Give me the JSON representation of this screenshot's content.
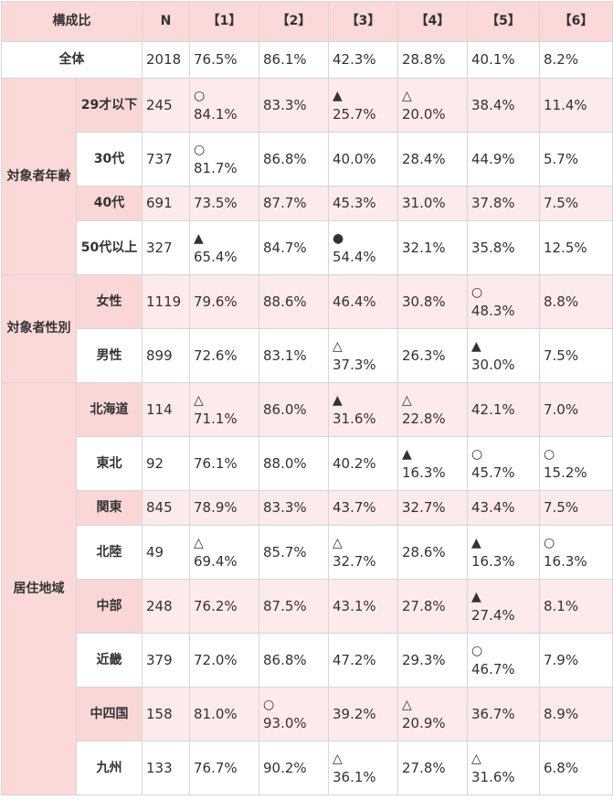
{
  "header": {
    "label": "構成比",
    "n": "N",
    "cols": [
      "【1】",
      "【2】",
      "【3】",
      "【4】",
      "【5】",
      "【6】"
    ]
  },
  "total": {
    "label": "全体",
    "n": "2018",
    "cells": [
      {
        "mark": "",
        "value": "76.5%"
      },
      {
        "mark": "",
        "value": "86.1%"
      },
      {
        "mark": "",
        "value": "42.3%"
      },
      {
        "mark": "",
        "value": "28.8%"
      },
      {
        "mark": "",
        "value": "40.1%"
      },
      {
        "mark": "",
        "value": "8.2%"
      }
    ]
  },
  "groups": [
    {
      "label": "対象者年齢",
      "rows": [
        {
          "label": "29才以下",
          "n": "245",
          "h": 60,
          "tone": "pink",
          "cells": [
            {
              "mark": "○",
              "value": "84.1%"
            },
            {
              "mark": "",
              "value": "83.3%"
            },
            {
              "mark": "▲",
              "value": "25.7%"
            },
            {
              "mark": "△",
              "value": "20.0%"
            },
            {
              "mark": "",
              "value": "38.4%"
            },
            {
              "mark": "",
              "value": "11.4%"
            }
          ]
        },
        {
          "label": "30代",
          "n": "737",
          "h": 60,
          "tone": "white",
          "cells": [
            {
              "mark": "○",
              "value": "81.7%"
            },
            {
              "mark": "",
              "value": "86.8%"
            },
            {
              "mark": "",
              "value": "40.0%"
            },
            {
              "mark": "",
              "value": "28.4%"
            },
            {
              "mark": "",
              "value": "44.9%"
            },
            {
              "mark": "",
              "value": "5.7%"
            }
          ]
        },
        {
          "label": "40代",
          "n": "691",
          "h": 38,
          "tone": "pink",
          "cells": [
            {
              "mark": "",
              "value": "73.5%"
            },
            {
              "mark": "",
              "value": "87.7%"
            },
            {
              "mark": "",
              "value": "45.3%"
            },
            {
              "mark": "",
              "value": "31.0%"
            },
            {
              "mark": "",
              "value": "37.8%"
            },
            {
              "mark": "",
              "value": "7.5%"
            }
          ]
        },
        {
          "label": "50代以上",
          "n": "327",
          "h": 60,
          "tone": "white",
          "cells": [
            {
              "mark": "▲",
              "value": "65.4%"
            },
            {
              "mark": "",
              "value": "84.7%"
            },
            {
              "mark": "●",
              "value": "54.4%"
            },
            {
              "mark": "",
              "value": "32.1%"
            },
            {
              "mark": "",
              "value": "35.8%"
            },
            {
              "mark": "",
              "value": "12.5%"
            }
          ]
        }
      ]
    },
    {
      "label": "対象者性別",
      "rows": [
        {
          "label": "女性",
          "n": "1119",
          "h": 60,
          "tone": "pink",
          "cells": [
            {
              "mark": "",
              "value": "79.6%"
            },
            {
              "mark": "",
              "value": "88.6%"
            },
            {
              "mark": "",
              "value": "46.4%"
            },
            {
              "mark": "",
              "value": "30.8%"
            },
            {
              "mark": "○",
              "value": "48.3%"
            },
            {
              "mark": "",
              "value": "8.8%"
            }
          ]
        },
        {
          "label": "男性",
          "n": "899",
          "h": 60,
          "tone": "white",
          "cells": [
            {
              "mark": "",
              "value": "72.6%"
            },
            {
              "mark": "",
              "value": "83.1%"
            },
            {
              "mark": "△",
              "value": "37.3%"
            },
            {
              "mark": "",
              "value": "26.3%"
            },
            {
              "mark": "▲",
              "value": "30.0%"
            },
            {
              "mark": "",
              "value": "7.5%"
            }
          ]
        }
      ]
    },
    {
      "label": "居住地域",
      "rows": [
        {
          "label": "北海道",
          "n": "114",
          "h": 60,
          "tone": "pink",
          "cells": [
            {
              "mark": "△",
              "value": "71.1%"
            },
            {
              "mark": "",
              "value": "86.0%"
            },
            {
              "mark": "▲",
              "value": "31.6%"
            },
            {
              "mark": "△",
              "value": "22.8%"
            },
            {
              "mark": "",
              "value": "42.1%"
            },
            {
              "mark": "",
              "value": "7.0%"
            }
          ]
        },
        {
          "label": "東北",
          "n": "92",
          "h": 60,
          "tone": "white",
          "cells": [
            {
              "mark": "",
              "value": "76.1%"
            },
            {
              "mark": "",
              "value": "88.0%"
            },
            {
              "mark": "",
              "value": "40.2%"
            },
            {
              "mark": "▲",
              "value": "16.3%"
            },
            {
              "mark": "○",
              "value": "45.7%"
            },
            {
              "mark": "○",
              "value": "15.2%"
            }
          ]
        },
        {
          "label": "関東",
          "n": "845",
          "h": 38,
          "tone": "pink",
          "cells": [
            {
              "mark": "",
              "value": "78.9%"
            },
            {
              "mark": "",
              "value": "83.3%"
            },
            {
              "mark": "",
              "value": "43.7%"
            },
            {
              "mark": "",
              "value": "32.7%"
            },
            {
              "mark": "",
              "value": "43.4%"
            },
            {
              "mark": "",
              "value": "7.5%"
            }
          ]
        },
        {
          "label": "北陸",
          "n": "49",
          "h": 60,
          "tone": "white",
          "cells": [
            {
              "mark": "△",
              "value": "69.4%"
            },
            {
              "mark": "",
              "value": "85.7%"
            },
            {
              "mark": "△",
              "value": "32.7%"
            },
            {
              "mark": "",
              "value": "28.6%"
            },
            {
              "mark": "▲",
              "value": "16.3%"
            },
            {
              "mark": "○",
              "value": "16.3%"
            }
          ]
        },
        {
          "label": "中部",
          "n": "248",
          "h": 60,
          "tone": "pink",
          "cells": [
            {
              "mark": "",
              "value": "76.2%"
            },
            {
              "mark": "",
              "value": "87.5%"
            },
            {
              "mark": "",
              "value": "43.1%"
            },
            {
              "mark": "",
              "value": "27.8%"
            },
            {
              "mark": "▲",
              "value": "27.4%"
            },
            {
              "mark": "",
              "value": "8.1%"
            }
          ]
        },
        {
          "label": "近畿",
          "n": "379",
          "h": 60,
          "tone": "white",
          "cells": [
            {
              "mark": "",
              "value": "72.0%"
            },
            {
              "mark": "",
              "value": "86.8%"
            },
            {
              "mark": "",
              "value": "47.2%"
            },
            {
              "mark": "",
              "value": "29.3%"
            },
            {
              "mark": "○",
              "value": "46.7%"
            },
            {
              "mark": "",
              "value": "7.9%"
            }
          ]
        },
        {
          "label": "中四国",
          "n": "158",
          "h": 60,
          "tone": "pink",
          "cells": [
            {
              "mark": "",
              "value": "81.0%"
            },
            {
              "mark": "○",
              "value": "93.0%"
            },
            {
              "mark": "",
              "value": "39.2%"
            },
            {
              "mark": "△",
              "value": "20.9%"
            },
            {
              "mark": "",
              "value": "36.7%"
            },
            {
              "mark": "",
              "value": "8.9%"
            }
          ]
        },
        {
          "label": "九州",
          "n": "133",
          "h": 60,
          "tone": "white",
          "cells": [
            {
              "mark": "",
              "value": "76.7%"
            },
            {
              "mark": "",
              "value": "90.2%"
            },
            {
              "mark": "△",
              "value": "36.1%"
            },
            {
              "mark": "",
              "value": "27.8%"
            },
            {
              "mark": "△",
              "value": "31.6%"
            },
            {
              "mark": "",
              "value": "6.8%"
            }
          ]
        }
      ]
    }
  ]
}
